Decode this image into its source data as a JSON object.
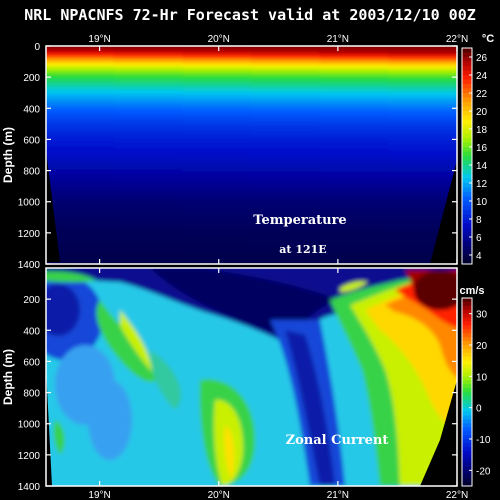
{
  "title": "NRL NPACNFS 72-Hr Forecast valid at 2003/12/10 00Z",
  "chart_data": [
    {
      "type": "heatmap",
      "label_line1": "Temperature",
      "label_line2": "at 121E",
      "unit": "°C",
      "x_ticks": [
        "19°N",
        "20°N",
        "21°N",
        "22°N"
      ],
      "x_range": [
        18.55,
        22.0
      ],
      "ylabel": "Depth (m)",
      "y_ticks": [
        "0",
        "200",
        "400",
        "600",
        "800",
        "1000",
        "1200",
        "1400"
      ],
      "ylim": [
        0,
        1400
      ],
      "colorbar_ticks": [
        "4",
        "6",
        "8",
        "10",
        "12",
        "14",
        "16",
        "18",
        "20",
        "22",
        "24",
        "26"
      ],
      "colorbar_range": [
        3,
        27
      ],
      "depth_profile": {
        "depth": [
          0,
          30,
          60,
          90,
          120,
          150,
          200,
          300,
          400,
          500,
          600,
          800,
          1000,
          1200,
          1400
        ],
        "temp": [
          26,
          25.5,
          23.5,
          21,
          19,
          17,
          15,
          12.5,
          10.5,
          9,
          8,
          6.5,
          5,
          4.3,
          4
        ]
      }
    },
    {
      "type": "heatmap",
      "label_line1": "Zonal Current",
      "unit": "cm/s",
      "x_ticks": [
        "19°N",
        "20°N",
        "21°N",
        "22°N"
      ],
      "x_range": [
        18.55,
        22.0
      ],
      "ylabel": "Depth (m)",
      "y_ticks": [
        "200",
        "400",
        "600",
        "800",
        "1000",
        "1200",
        "1400"
      ],
      "ylim": [
        0,
        1400
      ],
      "colorbar_ticks": [
        "30",
        "20",
        "10",
        "0",
        "-10",
        "-20"
      ],
      "colorbar_range": [
        -25,
        35
      ]
    }
  ]
}
